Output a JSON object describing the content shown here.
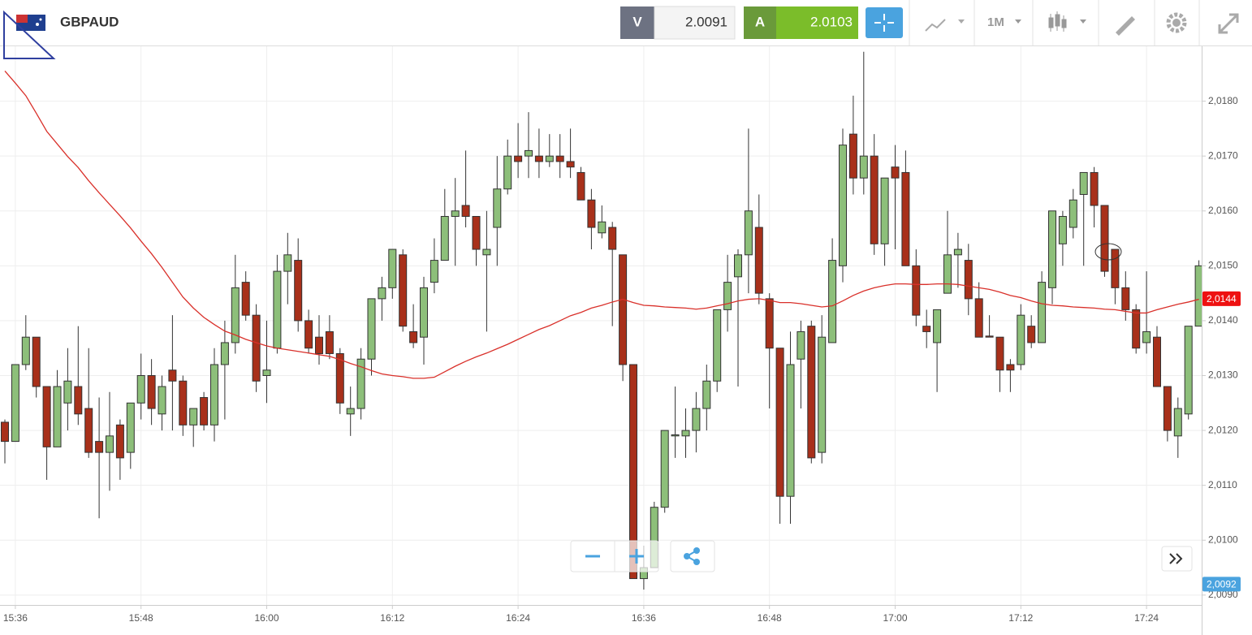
{
  "toolbar": {
    "symbol": "GBPAUD",
    "sell_label": "V",
    "sell_price": "2.0091",
    "buy_label": "A",
    "buy_price": "2.0103",
    "timeframe": "1M"
  },
  "chart_data": {
    "type": "candlestick",
    "categories": [
      null,
      "15:36",
      null,
      null,
      null,
      null,
      null,
      null,
      null,
      null,
      null,
      null,
      null,
      "15:48",
      null,
      null,
      null,
      null,
      null,
      null,
      null,
      null,
      null,
      null,
      null,
      "16:00",
      null,
      null,
      null,
      null,
      null,
      null,
      null,
      null,
      null,
      null,
      null,
      "16:12",
      null,
      null,
      null,
      null,
      null,
      null,
      null,
      null,
      null,
      null,
      null,
      "16:24",
      null,
      null,
      null,
      null,
      null,
      null,
      null,
      null,
      null,
      null,
      null,
      "16:36",
      null,
      null,
      null,
      null,
      null,
      null,
      null,
      null,
      null,
      null,
      null,
      "16:48",
      null,
      null,
      null,
      null,
      null,
      null,
      null,
      null,
      null,
      null,
      null,
      "17:00",
      null,
      null,
      null,
      null,
      null,
      null,
      null,
      null,
      null,
      null,
      null,
      "17:12",
      null,
      null,
      null,
      null,
      null,
      null,
      null,
      null,
      null,
      null,
      null,
      "17:24",
      null,
      null,
      null,
      null,
      null
    ],
    "open": [
      2.01215,
      2.0118,
      2.0132,
      2.0137,
      2.0128,
      2.0117,
      2.0125,
      2.0128,
      2.0124,
      2.0118,
      2.0116,
      2.0121,
      2.0116,
      2.0125,
      2.013,
      2.0123,
      2.0131,
      2.0129,
      2.0121,
      2.0126,
      2.0121,
      2.0132,
      2.0136,
      2.0147,
      2.0141,
      2.013,
      2.0135,
      2.0149,
      2.0151,
      2.014,
      2.0137,
      2.0138,
      2.0134,
      2.0123,
      2.0124,
      2.0133,
      2.0144,
      2.0146,
      2.0152,
      2.0138,
      2.0137,
      2.0147,
      2.0151,
      2.0159,
      2.0161,
      2.0159,
      2.0152,
      2.0157,
      2.0164,
      2.017,
      2.017,
      2.017,
      2.0169,
      2.017,
      2.0169,
      2.0167,
      2.0162,
      2.0156,
      2.0157,
      2.0152,
      2.0132,
      2.0093,
      2.0095,
      2.0106,
      2.0119,
      2.0119,
      2.012,
      2.0124,
      2.0129,
      2.0142,
      2.0148,
      2.0152,
      2.0157,
      2.0144,
      2.0135,
      2.0108,
      2.0133,
      2.0139,
      2.0116,
      2.0136,
      2.015,
      2.0174,
      2.0166,
      2.017,
      2.0154,
      2.0168,
      2.0167,
      2.015,
      2.0139,
      2.0136,
      2.0145,
      2.0152,
      2.0151,
      2.0144,
      2.01372,
      2.0137,
      2.0132,
      2.0132,
      2.0139,
      2.0136,
      2.0146,
      2.0154,
      2.0157,
      2.0163,
      2.0167,
      2.0161,
      2.0153,
      2.0146,
      2.0142,
      2.0136,
      2.0137,
      2.0128,
      2.0119,
      2.0123,
      2.0139
    ],
    "high": [
      2.0122,
      2.0132,
      2.0141,
      2.0137,
      2.0128,
      2.0131,
      2.0135,
      2.0139,
      2.0135,
      2.0126,
      2.0127,
      2.0122,
      2.0125,
      2.0134,
      2.0133,
      2.013,
      2.0141,
      2.013,
      2.0124,
      2.0127,
      2.0135,
      2.014,
      2.0152,
      2.0149,
      2.0143,
      2.014,
      2.0152,
      2.0156,
      2.0155,
      2.0142,
      2.0141,
      2.0141,
      2.0135,
      2.0128,
      2.0135,
      2.0144,
      2.0148,
      2.0153,
      2.0153,
      2.0143,
      2.0148,
      2.0155,
      2.0164,
      2.0166,
      2.0171,
      2.0159,
      2.016,
      2.017,
      2.0173,
      2.0176,
      2.0178,
      2.0175,
      2.0174,
      2.0174,
      2.0175,
      2.0168,
      2.0164,
      2.0161,
      2.0158,
      2.0152,
      2.0132,
      2.0099,
      2.0107,
      2.012,
      2.0128,
      2.0124,
      2.0127,
      2.0132,
      2.0142,
      2.0152,
      2.0153,
      2.0175,
      2.0163,
      2.0145,
      2.0135,
      2.0138,
      2.014,
      2.014,
      2.0141,
      2.0155,
      2.0175,
      2.0181,
      2.0189,
      2.0174,
      2.0166,
      2.0172,
      2.0171,
      2.0153,
      2.0142,
      2.0142,
      2.016,
      2.0156,
      2.0154,
      2.0147,
      2.0141,
      2.0137,
      2.0133,
      2.0143,
      2.0141,
      2.0149,
      2.016,
      2.016,
      2.0164,
      2.0167,
      2.0168,
      2.0161,
      2.0153,
      2.0149,
      2.0143,
      2.0149,
      2.0139,
      2.0128,
      2.0126,
      2.0139,
      2.0151
    ],
    "low": [
      2.0114,
      2.0118,
      2.0131,
      2.0126,
      2.0111,
      2.0117,
      2.012,
      2.0121,
      2.0115,
      2.0104,
      2.0109,
      2.0111,
      2.0113,
      2.0122,
      2.0121,
      2.012,
      2.012,
      2.0119,
      2.0117,
      2.012,
      2.0118,
      2.0122,
      2.0134,
      2.014,
      2.0127,
      2.0125,
      2.0134,
      2.0143,
      2.0138,
      2.0134,
      2.0132,
      2.0133,
      2.0123,
      2.0119,
      2.0122,
      2.013,
      2.014,
      2.0144,
      2.0138,
      2.0135,
      2.0132,
      2.0145,
      2.0151,
      2.015,
      2.0157,
      2.015,
      2.0138,
      2.015,
      2.0163,
      2.0166,
      2.0166,
      2.0166,
      2.0168,
      2.0166,
      2.0166,
      2.0162,
      2.0153,
      2.0155,
      2.0139,
      2.0129,
      2.0093,
      2.0091,
      2.0095,
      2.0105,
      2.0115,
      2.0115,
      2.0116,
      2.012,
      2.0127,
      2.0138,
      2.0128,
      2.0145,
      2.0143,
      2.0124,
      2.0103,
      2.0103,
      2.0124,
      2.0114,
      2.0114,
      2.0136,
      2.0147,
      2.0163,
      2.0163,
      2.0152,
      2.015,
      2.0153,
      2.015,
      2.0139,
      2.0135,
      2.0127,
      2.0145,
      2.0146,
      2.0141,
      2.0137,
      2.0137,
      2.0127,
      2.0127,
      2.0131,
      2.0135,
      2.0136,
      2.0143,
      2.015,
      2.0155,
      2.015,
      2.0157,
      2.0148,
      2.0143,
      2.014,
      2.0134,
      2.0134,
      2.0128,
      2.0118,
      2.0115,
      2.0122,
      2.0139
    ],
    "close": [
      2.0118,
      2.0132,
      2.0137,
      2.0128,
      2.0117,
      2.0128,
      2.0129,
      2.0123,
      2.0116,
      2.0116,
      2.0119,
      2.0115,
      2.0125,
      2.013,
      2.0124,
      2.0128,
      2.0129,
      2.0121,
      2.0124,
      2.0121,
      2.0132,
      2.0136,
      2.0146,
      2.0141,
      2.0129,
      2.0131,
      2.0149,
      2.0152,
      2.014,
      2.0135,
      2.0134,
      2.0134,
      2.0125,
      2.0124,
      2.0133,
      2.0144,
      2.0146,
      2.0153,
      2.0139,
      2.0136,
      2.0146,
      2.0151,
      2.0159,
      2.016,
      2.0159,
      2.0153,
      2.0153,
      2.0164,
      2.017,
      2.0169,
      2.0171,
      2.0169,
      2.017,
      2.0169,
      2.0168,
      2.0162,
      2.0157,
      2.0158,
      2.0153,
      2.0132,
      2.0093,
      2.0095,
      2.0106,
      2.012,
      2.01192,
      2.012,
      2.0124,
      2.0129,
      2.0142,
      2.0147,
      2.0152,
      2.016,
      2.0145,
      2.0135,
      2.0108,
      2.0132,
      2.0138,
      2.0115,
      2.0137,
      2.0151,
      2.0172,
      2.0166,
      2.017,
      2.0154,
      2.0166,
      2.0166,
      2.015,
      2.0141,
      2.0138,
      2.0142,
      2.0152,
      2.0153,
      2.0144,
      2.0137,
      2.0137,
      2.0131,
      2.0131,
      2.0141,
      2.0136,
      2.0147,
      2.016,
      2.0159,
      2.0162,
      2.0167,
      2.0161,
      2.0149,
      2.0146,
      2.0142,
      2.0135,
      2.0138,
      2.0128,
      2.012,
      2.0124,
      2.0139,
      2.015
    ],
    "moving_average": {
      "color": "#d9302a",
      "values": [
        2.01855,
        2.01833,
        2.0181,
        2.01778,
        2.01745,
        2.01722,
        2.01699,
        2.01679,
        2.01655,
        2.01633,
        2.01612,
        2.01591,
        2.01569,
        2.01545,
        2.01522,
        2.01497,
        2.0147,
        2.01443,
        2.01423,
        2.01406,
        2.01393,
        2.01381,
        2.01374,
        2.01366,
        2.0136,
        2.01354,
        2.0135,
        2.01347,
        2.01344,
        2.01341,
        2.01338,
        2.01335,
        2.01329,
        2.01322,
        2.01316,
        2.01309,
        2.01303,
        2.013,
        2.01298,
        2.01295,
        2.01295,
        2.01297,
        2.01307,
        2.01317,
        2.01326,
        2.01334,
        2.01341,
        2.01349,
        2.01357,
        2.01366,
        2.01375,
        2.01384,
        2.01391,
        2.014,
        2.01409,
        2.01415,
        2.01423,
        2.01428,
        2.01434,
        2.01439,
        2.01433,
        2.01428,
        2.01427,
        2.01425,
        2.01424,
        2.01423,
        2.01421,
        2.01423,
        2.01427,
        2.01431,
        2.01436,
        2.01439,
        2.0144,
        2.01437,
        2.01433,
        2.01433,
        2.01431,
        2.01428,
        2.01425,
        2.01427,
        2.01436,
        2.01446,
        2.01454,
        2.0146,
        2.01464,
        2.01467,
        2.01467,
        2.01466,
        2.01466,
        2.01467,
        2.01467,
        2.01466,
        2.01463,
        2.0146,
        2.01457,
        2.01452,
        2.01446,
        2.01442,
        2.01436,
        2.01431,
        2.01428,
        2.01427,
        2.01425,
        2.01424,
        2.01423,
        2.01421,
        2.0142,
        2.01417,
        2.01414,
        2.01414,
        2.0142,
        2.01425,
        2.0143,
        2.01434,
        2.01439
      ]
    },
    "up_color": "#8dbf7a",
    "down_color": "#a8301a",
    "ylim": [
      2.00882,
      2.019
    ],
    "yticks": [
      {
        "value": 2.009,
        "label": "2,0090"
      },
      {
        "value": 2.01,
        "label": "2,0100"
      },
      {
        "value": 2.011,
        "label": "2,0110"
      },
      {
        "value": 2.012,
        "label": "2,0120"
      },
      {
        "value": 2.013,
        "label": "2,0130"
      },
      {
        "value": 2.014,
        "label": "2,0140"
      },
      {
        "value": 2.015,
        "label": "2,0150"
      },
      {
        "value": 2.016,
        "label": "2,0160"
      },
      {
        "value": 2.017,
        "label": "2,0170"
      },
      {
        "value": 2.018,
        "label": "2,0180"
      }
    ],
    "last_price": {
      "value": 2.0144,
      "label": "2,0144",
      "color": "#ee1111"
    },
    "bid_price": {
      "value": 2.0092,
      "label": "2,0092",
      "color": "#4aa3df"
    },
    "grid": true
  }
}
